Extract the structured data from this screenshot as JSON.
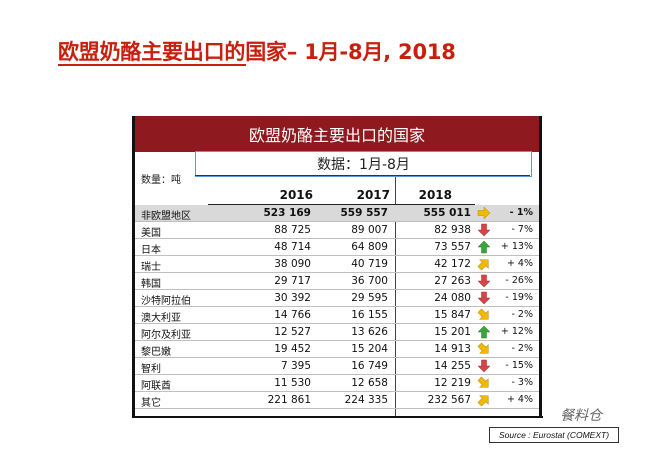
{
  "page": {
    "title": "欧盟奶酪主要出口的国家– 1月-8月, 2018"
  },
  "table": {
    "banner": "欧盟奶酪主要出口的国家",
    "subtitle": "数据：1月-8月",
    "unit": "数量：吨",
    "columns": [
      "2016",
      "2017",
      "2018"
    ],
    "rows": [
      {
        "name": "非欧盟地区",
        "v2016": "523 169",
        "v2017": "559 557",
        "v2018": "555 011",
        "trend": "flat",
        "pct": "- 1%"
      },
      {
        "name": "美国",
        "v2016": "88 725",
        "v2017": "89 007",
        "v2018": "82 938",
        "trend": "down",
        "pct": "- 7%"
      },
      {
        "name": "日本",
        "v2016": "48 714",
        "v2017": "64 809",
        "v2018": "73 557",
        "trend": "up",
        "pct": "+ 13%"
      },
      {
        "name": "瑞士",
        "v2016": "38 090",
        "v2017": "40 719",
        "v2018": "42 172",
        "trend": "slight-up",
        "pct": "+ 4%"
      },
      {
        "name": "韩国",
        "v2016": "29 717",
        "v2017": "36 700",
        "v2018": "27 263",
        "trend": "down",
        "pct": "- 26%"
      },
      {
        "name": "沙特阿拉伯",
        "v2016": "30 392",
        "v2017": "29 595",
        "v2018": "24 080",
        "trend": "down",
        "pct": "- 19%"
      },
      {
        "name": "澳大利亚",
        "v2016": "14 766",
        "v2017": "16 155",
        "v2018": "15 847",
        "trend": "slight-down",
        "pct": "- 2%"
      },
      {
        "name": "阿尔及利亚",
        "v2016": "12 527",
        "v2017": "13 626",
        "v2018": "15 201",
        "trend": "up",
        "pct": "+ 12%"
      },
      {
        "name": "黎巴嫩",
        "v2016": "19 452",
        "v2017": "15 204",
        "v2018": "14 913",
        "trend": "slight-down",
        "pct": "- 2%"
      },
      {
        "name": "智利",
        "v2016": "7 395",
        "v2017": "16 749",
        "v2018": "14 255",
        "trend": "down",
        "pct": "- 15%"
      },
      {
        "name": "阿联酋",
        "v2016": "11 530",
        "v2017": "12 658",
        "v2018": "12 219",
        "trend": "slight-down",
        "pct": "- 3%"
      },
      {
        "name": "其它",
        "v2016": "221 861",
        "v2017": "224 335",
        "v2018": "232 567",
        "trend": "slight-up",
        "pct": "+ 4%"
      }
    ]
  },
  "source": "Source : Eurostat (COMEXT)",
  "watermark": "餐料仓",
  "colors": {
    "title": "#c8200e",
    "banner": "#8e1a20",
    "arrow_up": "#3aa63a",
    "arrow_down": "#d64545",
    "arrow_flat": "#f5b800"
  }
}
